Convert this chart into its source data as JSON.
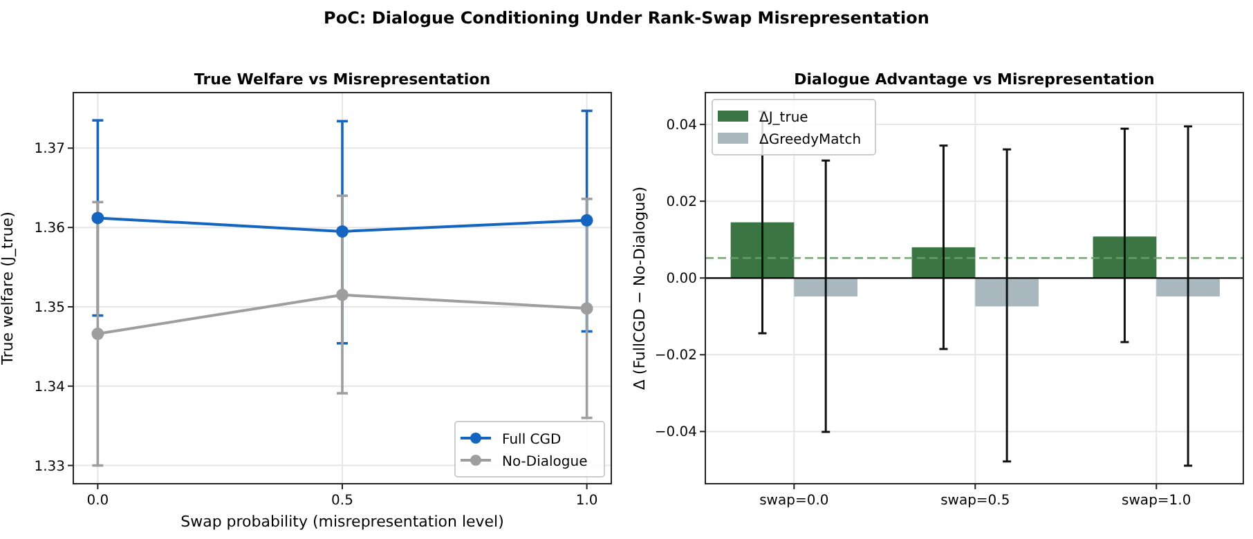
{
  "chart_data": [
    {
      "type": "line",
      "annotations": [
        "PoC: Dialogue Conditioning Under Rank-Swap Misrepresentation"
      ],
      "title": "True Welfare vs Misrepresentation",
      "xlabel": "Swap probability (misrepresentation level)",
      "ylabel": "True welfare (J_true)",
      "x": [
        0.0,
        0.5,
        1.0
      ],
      "xlim": [
        -0.05,
        1.05
      ],
      "xticks": [
        {
          "value": 0,
          "label": "0.0"
        },
        0.5,
        {
          "value": 1,
          "label": "1.0"
        }
      ],
      "ylim": [
        1.3277,
        1.377
      ],
      "yticks": [
        1.33,
        1.34,
        1.35,
        1.36,
        1.37
      ],
      "grid": true,
      "legend": "bottom right",
      "marker": "circle",
      "line_style": "solid",
      "series": [
        {
          "name": "Full CGD",
          "color": "#1565c0",
          "values": [
            1.3612,
            1.3595,
            1.3609
          ],
          "errors": [
            [
              1.3489,
              1.3735
            ],
            [
              1.3454,
              1.3734
            ],
            [
              1.3469,
              1.3747
            ]
          ]
        },
        {
          "name": "No-Dialogue",
          "color": "#9e9e9e",
          "values": [
            1.3466,
            1.3515,
            1.3498
          ],
          "errors": [
            [
              1.33,
              1.3632
            ],
            [
              1.3391,
              1.364
            ],
            [
              1.336,
              1.3636
            ]
          ]
        }
      ]
    },
    {
      "type": "bar",
      "title": "Dialogue Advantage vs Misrepresentation",
      "ylabel": "Δ (FullCGD − No-Dialogue)",
      "categories": [
        "swap=0.0",
        "swap=0.5",
        "swap=1.0"
      ],
      "ylim": [
        -0.0536,
        0.0483
      ],
      "yticks": [
        {
          "value": -0.04,
          "label": "−0.04"
        },
        {
          "value": -0.02,
          "label": "−0.02"
        },
        {
          "value": 0,
          "label": "0.00"
        },
        0.02,
        0.04
      ],
      "grid": true,
      "legend": "top left",
      "series": [
        {
          "name": "ΔJ_true",
          "color": "#3b7543",
          "values": [
            0.0145,
            0.008,
            0.0108
          ],
          "errors": [
            [
              -0.0144,
              0.0434
            ],
            [
              -0.0185,
              0.0345
            ],
            [
              -0.0167,
              0.0389
            ]
          ]
        },
        {
          "name": "ΔGreedyMatch",
          "color": "#a9b7bf",
          "values": [
            -0.0048,
            -0.0074,
            -0.0048
          ],
          "errors": [
            [
              -0.0401,
              0.0306
            ],
            [
              -0.0478,
              0.0335
            ],
            [
              -0.0489,
              0.0395
            ]
          ]
        }
      ],
      "ref_lines": [
        {
          "axis": "y",
          "value": 0,
          "color": "#000000",
          "line_style": "solid"
        },
        {
          "axis": "y",
          "value": 0.0052,
          "color": "#6aa06a",
          "line_style": "dashed"
        }
      ]
    }
  ]
}
